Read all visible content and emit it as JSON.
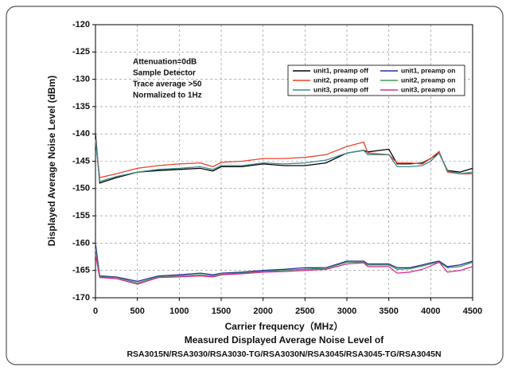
{
  "chart_data": {
    "type": "line",
    "y_label": "Displayed Average Noise Level (dBm)",
    "x_label": "Carrier frequency（MHz）",
    "caption": [
      "Measured Displayed Average Noise Level of",
      "RSA3015N/RSA3030/RSA3030-TG/RSA3030N/RSA3045/RSA3045-TG/RSA3045N"
    ],
    "annotations": [
      "Attenuation=0dB",
      "Sample Detector",
      "Trace average >50",
      "Normalized to 1Hz"
    ],
    "x": [
      0,
      50,
      250,
      500,
      750,
      1000,
      1250,
      1400,
      1500,
      1750,
      2000,
      2250,
      2500,
      2750,
      3000,
      3200,
      3250,
      3500,
      3600,
      3750,
      3900,
      4000,
      4100,
      4200,
      4350,
      4500
    ],
    "series": [
      {
        "name": "unit1, preamp off",
        "color": "#000000",
        "values": [
          -140,
          -149,
          -148,
          -147,
          -146.7,
          -146.5,
          -146.3,
          -146.8,
          -146,
          -146,
          -145.5,
          -145.8,
          -145.8,
          -145.3,
          -143.5,
          -143,
          -143.3,
          -142.8,
          -145.5,
          -145.5,
          -145.3,
          -144.5,
          -143.5,
          -146.7,
          -147,
          -146.3
        ]
      },
      {
        "name": "unit1, preamp on",
        "color": "#2b2b9e",
        "values": [
          -160,
          -166,
          -166.2,
          -167,
          -166,
          -165.8,
          -165.5,
          -165.8,
          -165.5,
          -165.3,
          -165,
          -164.8,
          -164.5,
          -164.5,
          -163.3,
          -163.3,
          -163.8,
          -163.8,
          -164.5,
          -164.5,
          -164,
          -163.6,
          -163.3,
          -164.3,
          -164,
          -163.3
        ]
      },
      {
        "name": "unit2, preamp off",
        "color": "#e8412c",
        "values": [
          -141,
          -148,
          -147.3,
          -146.3,
          -145.8,
          -145.5,
          -145.3,
          -146,
          -145.2,
          -145,
          -144.5,
          -144.5,
          -144.3,
          -143.8,
          -142.3,
          -141.5,
          -143.5,
          -143.8,
          -145.3,
          -145.3,
          -145.5,
          -144.5,
          -143.2,
          -147,
          -147.3,
          -147.3
        ]
      },
      {
        "name": "unit2, preamp on",
        "color": "#3f9a5a",
        "values": [
          -161,
          -166.2,
          -166.3,
          -167.3,
          -166.2,
          -166,
          -165.8,
          -166,
          -165.6,
          -165.5,
          -165.2,
          -165,
          -164.8,
          -164.6,
          -163.5,
          -163.5,
          -164,
          -164,
          -164.8,
          -164.7,
          -164.2,
          -163.8,
          -163.5,
          -164.5,
          -164.3,
          -163.5
        ]
      },
      {
        "name": "unit3, preamp off",
        "color": "#3d8a8c",
        "values": [
          -141,
          -148.7,
          -147.8,
          -147,
          -146.5,
          -146.3,
          -146,
          -146.5,
          -145.8,
          -145.8,
          -145.3,
          -145.5,
          -145.3,
          -144.8,
          -143.5,
          -143,
          -143.8,
          -143.8,
          -146,
          -146,
          -145.8,
          -145,
          -143.5,
          -146.8,
          -147.3,
          -147
        ]
      },
      {
        "name": "unit3, preamp on",
        "color": "#d6308f",
        "values": [
          -162,
          -166.3,
          -166.5,
          -167.5,
          -166.3,
          -166.2,
          -166,
          -166.2,
          -165.8,
          -165.6,
          -165.3,
          -165.2,
          -165,
          -164.8,
          -163.8,
          -163.6,
          -164.3,
          -164.3,
          -165.5,
          -165.3,
          -164.8,
          -164.2,
          -163.5,
          -165.3,
          -165,
          -164.3
        ]
      }
    ],
    "xlim": [
      0,
      4500
    ],
    "xticks": [
      0,
      500,
      1000,
      1500,
      2000,
      2500,
      3000,
      3500,
      4000,
      4500
    ],
    "ylim": [
      -170,
      -120
    ],
    "yticks": [
      -120,
      -125,
      -130,
      -135,
      -140,
      -145,
      -150,
      -155,
      -160,
      -165,
      -170
    ],
    "grid": true
  }
}
